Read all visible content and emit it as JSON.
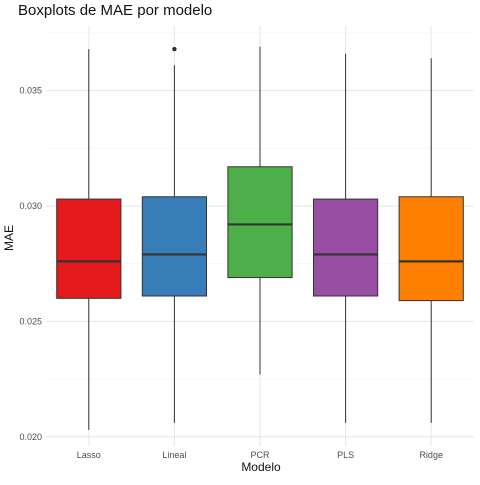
{
  "chart_data": {
    "type": "boxplot",
    "title": "Boxplots de MAE por modelo",
    "xlabel": "Modelo",
    "ylabel": "MAE",
    "ylim": [
      0.0196,
      0.0378
    ],
    "y_ticks": [
      0.02,
      0.025,
      0.03,
      0.035
    ],
    "y_tick_labels": [
      "0.020",
      "0.025",
      "0.030",
      "0.035"
    ],
    "grid": true,
    "legend": "none",
    "categories": [
      "Lasso",
      "Lineal",
      "PCR",
      "PLS",
      "Ridge"
    ],
    "boxes": [
      {
        "name": "Lasso",
        "min": 0.0203,
        "q1": 0.026,
        "median": 0.0276,
        "q3": 0.0303,
        "max": 0.0368,
        "outliers": [],
        "color": "#E41A1C"
      },
      {
        "name": "Lineal",
        "min": 0.0206,
        "q1": 0.0261,
        "median": 0.0279,
        "q3": 0.0304,
        "max": 0.0361,
        "outliers": [
          0.0368
        ],
        "color": "#377EB8"
      },
      {
        "name": "PCR",
        "min": 0.0227,
        "q1": 0.0269,
        "median": 0.0292,
        "q3": 0.0317,
        "max": 0.0369,
        "outliers": [],
        "color": "#4DAF4A"
      },
      {
        "name": "PLS",
        "min": 0.0206,
        "q1": 0.0261,
        "median": 0.0279,
        "q3": 0.0303,
        "max": 0.0366,
        "outliers": [],
        "color": "#984EA3"
      },
      {
        "name": "Ridge",
        "min": 0.0206,
        "q1": 0.0259,
        "median": 0.0276,
        "q3": 0.0304,
        "max": 0.0364,
        "outliers": [],
        "color": "#FF7F00"
      }
    ]
  }
}
